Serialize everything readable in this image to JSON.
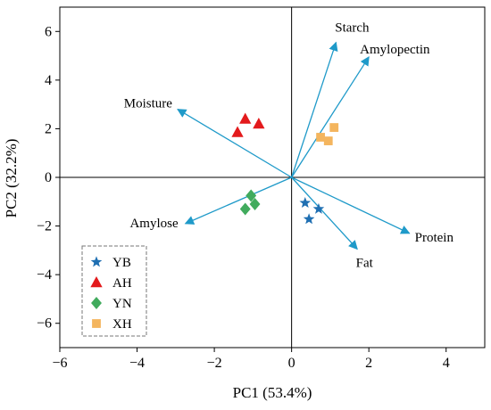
{
  "chart_data": {
    "type": "scatter",
    "subtype": "pca-biplot",
    "xlabel": "PC1 (53.4%)",
    "ylabel": "PC2 (32.2%)",
    "xlim": [
      -6,
      5
    ],
    "ylim": [
      -7,
      7
    ],
    "x_ticks": [
      -6,
      -4,
      -2,
      0,
      2,
      4
    ],
    "y_ticks": [
      -6,
      -4,
      -2,
      0,
      2,
      4,
      6
    ],
    "x_tick_labels": [
      "−6",
      "−4",
      "−2",
      "0",
      "2",
      "4"
    ],
    "y_tick_labels": [
      "−6",
      "−4",
      "−2",
      "0",
      "2",
      "4",
      "6"
    ],
    "reference_lines": {
      "x": 0,
      "y": 0
    },
    "grid": false,
    "legend": {
      "position": "bottom-left",
      "border": "dashed",
      "entries": [
        "YB",
        "AH",
        "YN",
        "XH"
      ]
    },
    "series": [
      {
        "name": "YB",
        "marker": "star",
        "color": "#1f6fb2",
        "points": [
          [
            0.35,
            -1.05
          ],
          [
            0.7,
            -1.3
          ],
          [
            0.45,
            -1.72
          ]
        ]
      },
      {
        "name": "AH",
        "marker": "triangle",
        "color": "#e31a1c",
        "points": [
          [
            -1.2,
            2.4
          ],
          [
            -0.85,
            2.2
          ],
          [
            -1.4,
            1.85
          ]
        ]
      },
      {
        "name": "YN",
        "marker": "diamond",
        "color": "#41ab5d",
        "points": [
          [
            -1.05,
            -0.75
          ],
          [
            -0.95,
            -1.1
          ],
          [
            -1.2,
            -1.3
          ]
        ]
      },
      {
        "name": "XH",
        "marker": "square",
        "color": "#f4b55e",
        "points": [
          [
            1.1,
            2.05
          ],
          [
            0.75,
            1.65
          ],
          [
            0.95,
            1.5
          ]
        ]
      }
    ],
    "loadings": [
      {
        "name": "Starch",
        "x": 1.15,
        "y": 5.55
      },
      {
        "name": "Amylopectin",
        "x": 2.0,
        "y": 4.95
      },
      {
        "name": "Moisture",
        "x": -2.95,
        "y": 2.8
      },
      {
        "name": "Amylose",
        "x": -2.75,
        "y": -1.9
      },
      {
        "name": "Protein",
        "x": 3.05,
        "y": -2.3
      },
      {
        "name": "Fat",
        "x": 1.7,
        "y": -2.95
      }
    ],
    "colors": {
      "loading_arrow": "#1f9ac9",
      "axes": "#000000",
      "legend_border": "#777777"
    }
  }
}
